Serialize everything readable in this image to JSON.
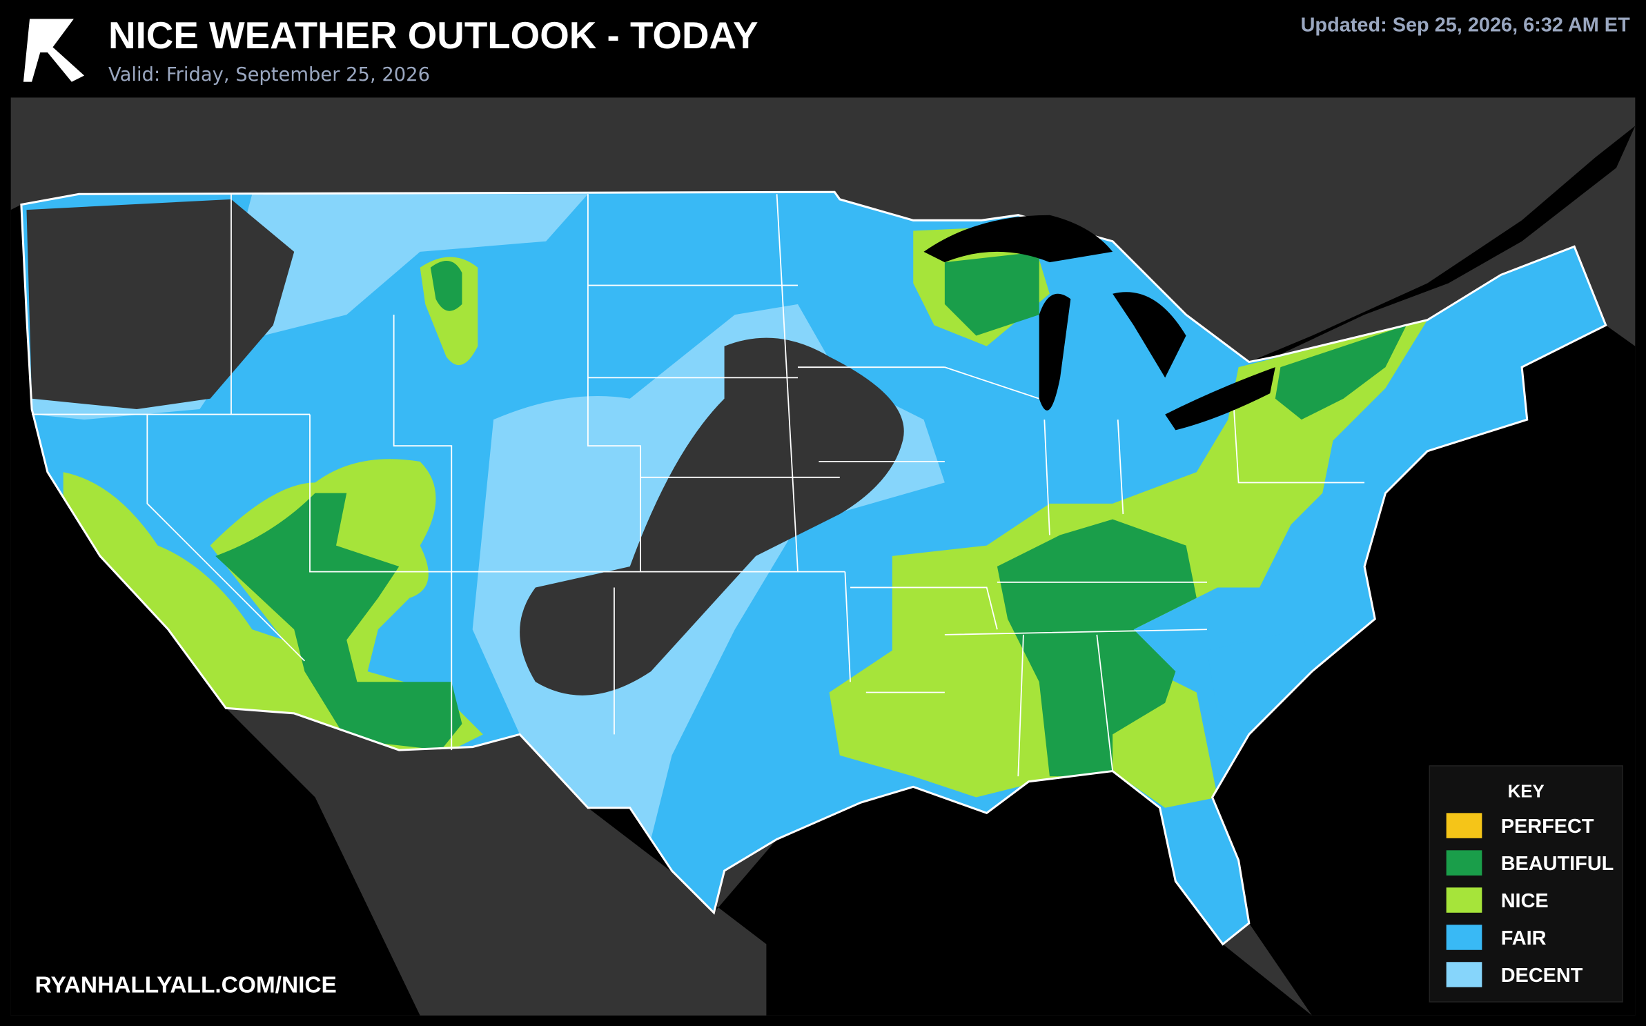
{
  "header": {
    "title": "NICE WEATHER OUTLOOK - TODAY",
    "subtitle": "Valid: Friday, September 25, 2026",
    "updated": "Updated: Sep 25, 2026, 6:32 AM ET"
  },
  "footer": {
    "url": "RYANHALLYALL.COM/NICE"
  },
  "legend": {
    "title": "KEY",
    "items": [
      {
        "label": "PERFECT",
        "color": "#f5c518"
      },
      {
        "label": "BEAUTIFUL",
        "color": "#1a9e4a"
      },
      {
        "label": "NICE",
        "color": "#a6e43a"
      },
      {
        "label": "FAIR",
        "color": "#39b9f5"
      },
      {
        "label": "DECENT",
        "color": "#86d5fb"
      }
    ]
  }
}
